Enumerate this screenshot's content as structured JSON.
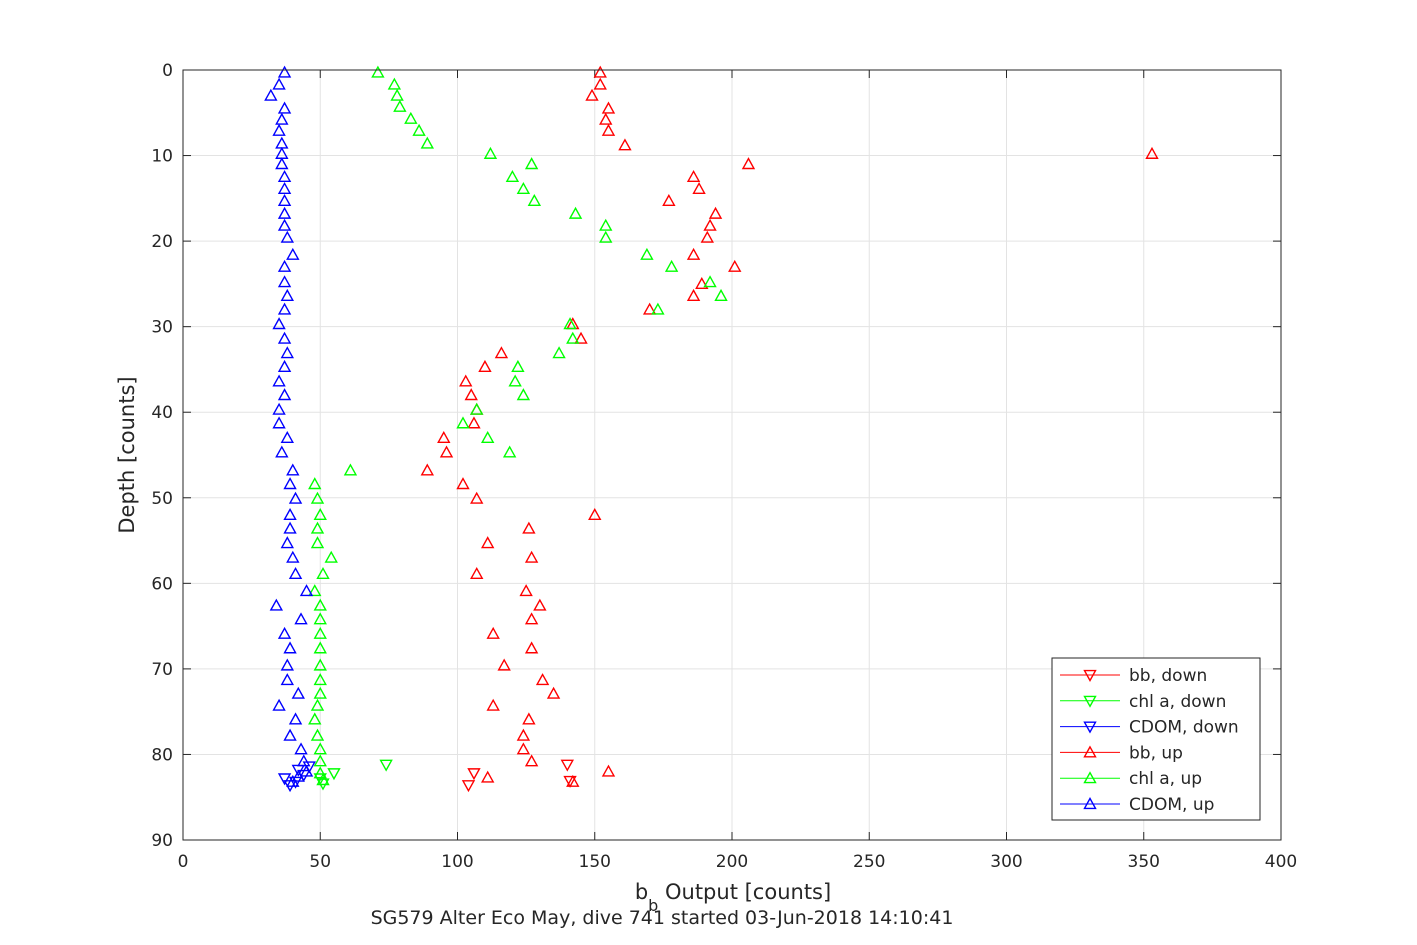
{
  "chart_data": {
    "type": "scatter",
    "title": "SG579 Alter Eco May, dive 741 started 03-Jun-2018 14:10:41",
    "xlabel_main": "b",
    "xlabel_sub": "b",
    "xlabel_rest": " Output [counts]",
    "ylabel": "Depth [counts]",
    "xlim": [
      0,
      400
    ],
    "ylim": [
      0,
      90
    ],
    "y_reversed": true,
    "grid": true,
    "legend_position": "bottom-right",
    "xticks": [
      "0",
      "50",
      "100",
      "150",
      "200",
      "250",
      "300",
      "350",
      "400"
    ],
    "yticks": [
      "0",
      "10",
      "20",
      "30",
      "40",
      "50",
      "60",
      "70",
      "80",
      "90"
    ],
    "legend": [
      {
        "label": "bb, down",
        "color": "#ff0000",
        "marker": "down"
      },
      {
        "label": "chl a, down",
        "color": "#00ff00",
        "marker": "down"
      },
      {
        "label": "CDOM, down",
        "color": "#0000ff",
        "marker": "down"
      },
      {
        "label": "bb, up",
        "color": "#ff0000",
        "marker": "up"
      },
      {
        "label": "chl a, up",
        "color": "#00ff00",
        "marker": "up"
      },
      {
        "label": "CDOM, up",
        "color": "#0000ff",
        "marker": "up"
      }
    ],
    "series": [
      {
        "name": "bb, down",
        "color": "#ff0000",
        "marker": "down",
        "points": [
          [
            140,
            81.2
          ],
          [
            141,
            83.1
          ],
          [
            106,
            82.2
          ],
          [
            104,
            83.6
          ]
        ]
      },
      {
        "name": "chl a, down",
        "color": "#00ff00",
        "marker": "down",
        "points": [
          [
            74,
            81.2
          ],
          [
            55,
            82.2
          ],
          [
            50,
            82.8
          ],
          [
            51,
            83.4
          ]
        ]
      },
      {
        "name": "CDOM, down",
        "color": "#0000ff",
        "marker": "down",
        "points": [
          [
            46,
            81.4
          ],
          [
            42,
            81.8
          ],
          [
            44,
            82.4
          ],
          [
            37,
            82.8
          ],
          [
            41,
            83.2
          ],
          [
            39,
            83.6
          ]
        ]
      },
      {
        "name": "bb, up",
        "color": "#ff0000",
        "marker": "up",
        "points": [
          [
            152,
            0.3
          ],
          [
            152,
            1.7
          ],
          [
            149,
            3.0
          ],
          [
            155,
            4.5
          ],
          [
            154,
            5.8
          ],
          [
            155,
            7.1
          ],
          [
            161,
            8.8
          ],
          [
            353,
            9.8
          ],
          [
            206,
            11.0
          ],
          [
            186,
            12.5
          ],
          [
            188,
            13.9
          ],
          [
            177,
            15.3
          ],
          [
            194,
            16.8
          ],
          [
            192,
            18.2
          ],
          [
            191,
            19.6
          ],
          [
            186,
            21.6
          ],
          [
            201,
            23.0
          ],
          [
            189,
            25.0
          ],
          [
            186,
            26.4
          ],
          [
            170,
            28.0
          ],
          [
            142,
            29.7
          ],
          [
            145,
            31.4
          ],
          [
            116,
            33.1
          ],
          [
            110,
            34.7
          ],
          [
            103,
            36.4
          ],
          [
            105,
            38.0
          ],
          [
            107,
            39.7
          ],
          [
            106,
            41.3
          ],
          [
            95,
            43.0
          ],
          [
            96,
            44.7
          ],
          [
            89,
            46.8
          ],
          [
            102,
            48.4
          ],
          [
            107,
            50.1
          ],
          [
            150,
            52.0
          ],
          [
            126,
            53.6
          ],
          [
            111,
            55.3
          ],
          [
            127,
            57.0
          ],
          [
            107,
            58.9
          ],
          [
            125,
            60.9
          ],
          [
            130,
            62.6
          ],
          [
            127,
            64.2
          ],
          [
            113,
            65.9
          ],
          [
            127,
            67.6
          ],
          [
            117,
            69.6
          ],
          [
            131,
            71.3
          ],
          [
            135,
            72.9
          ],
          [
            113,
            74.3
          ],
          [
            126,
            75.9
          ],
          [
            124,
            77.8
          ],
          [
            124,
            79.4
          ],
          [
            127,
            80.8
          ],
          [
            155,
            82.0
          ],
          [
            111,
            82.7
          ],
          [
            142,
            83.2
          ]
        ]
      },
      {
        "name": "chl a, up",
        "color": "#00ff00",
        "marker": "up",
        "points": [
          [
            71,
            0.3
          ],
          [
            77,
            1.7
          ],
          [
            78,
            3.0
          ],
          [
            79,
            4.3
          ],
          [
            83,
            5.7
          ],
          [
            86,
            7.1
          ],
          [
            89,
            8.6
          ],
          [
            112,
            9.8
          ],
          [
            127,
            11.0
          ],
          [
            120,
            12.5
          ],
          [
            124,
            13.9
          ],
          [
            128,
            15.3
          ],
          [
            143,
            16.8
          ],
          [
            154,
            18.2
          ],
          [
            154,
            19.6
          ],
          [
            169,
            21.6
          ],
          [
            178,
            23.0
          ],
          [
            192,
            24.8
          ],
          [
            196,
            26.4
          ],
          [
            173,
            28.0
          ],
          [
            141,
            29.7
          ],
          [
            142,
            31.4
          ],
          [
            137,
            33.1
          ],
          [
            122,
            34.7
          ],
          [
            121,
            36.4
          ],
          [
            124,
            38.0
          ],
          [
            107,
            39.7
          ],
          [
            102,
            41.3
          ],
          [
            111,
            43.0
          ],
          [
            119,
            44.7
          ],
          [
            61,
            46.8
          ],
          [
            48,
            48.4
          ],
          [
            49,
            50.1
          ],
          [
            50,
            52.0
          ],
          [
            49,
            53.6
          ],
          [
            49,
            55.3
          ],
          [
            54,
            57.0
          ],
          [
            51,
            58.9
          ],
          [
            48,
            60.9
          ],
          [
            50,
            62.6
          ],
          [
            50,
            64.2
          ],
          [
            50,
            65.9
          ],
          [
            50,
            67.6
          ],
          [
            50,
            69.6
          ],
          [
            50,
            71.3
          ],
          [
            50,
            72.9
          ],
          [
            49,
            74.3
          ],
          [
            48,
            75.9
          ],
          [
            49,
            77.8
          ],
          [
            50,
            79.4
          ],
          [
            50,
            80.8
          ],
          [
            50,
            82.2
          ],
          [
            51,
            83.0
          ]
        ]
      },
      {
        "name": "CDOM, up",
        "color": "#0000ff",
        "marker": "up",
        "points": [
          [
            37,
            0.3
          ],
          [
            35,
            1.7
          ],
          [
            32,
            3.0
          ],
          [
            37,
            4.5
          ],
          [
            36,
            5.8
          ],
          [
            35,
            7.1
          ],
          [
            36,
            8.6
          ],
          [
            36,
            9.8
          ],
          [
            36,
            11.0
          ],
          [
            37,
            12.5
          ],
          [
            37,
            13.9
          ],
          [
            37,
            15.3
          ],
          [
            37,
            16.8
          ],
          [
            37,
            18.2
          ],
          [
            38,
            19.6
          ],
          [
            40,
            21.6
          ],
          [
            37,
            23.0
          ],
          [
            37,
            24.8
          ],
          [
            38,
            26.4
          ],
          [
            37,
            28.0
          ],
          [
            35,
            29.7
          ],
          [
            37,
            31.4
          ],
          [
            38,
            33.1
          ],
          [
            37,
            34.7
          ],
          [
            35,
            36.4
          ],
          [
            37,
            38.0
          ],
          [
            35,
            39.7
          ],
          [
            35,
            41.3
          ],
          [
            38,
            43.0
          ],
          [
            36,
            44.7
          ],
          [
            40,
            46.8
          ],
          [
            39,
            48.4
          ],
          [
            41,
            50.1
          ],
          [
            39,
            52.0
          ],
          [
            39,
            53.6
          ],
          [
            38,
            55.3
          ],
          [
            40,
            57.0
          ],
          [
            41,
            58.9
          ],
          [
            45,
            60.9
          ],
          [
            34,
            62.6
          ],
          [
            43,
            64.2
          ],
          [
            37,
            65.9
          ],
          [
            39,
            67.6
          ],
          [
            38,
            69.6
          ],
          [
            38,
            71.3
          ],
          [
            42,
            72.9
          ],
          [
            35,
            74.3
          ],
          [
            41,
            75.9
          ],
          [
            39,
            77.8
          ],
          [
            43,
            79.4
          ],
          [
            44,
            80.8
          ],
          [
            45,
            82.0
          ],
          [
            42,
            82.6
          ],
          [
            40,
            83.2
          ]
        ]
      }
    ]
  }
}
